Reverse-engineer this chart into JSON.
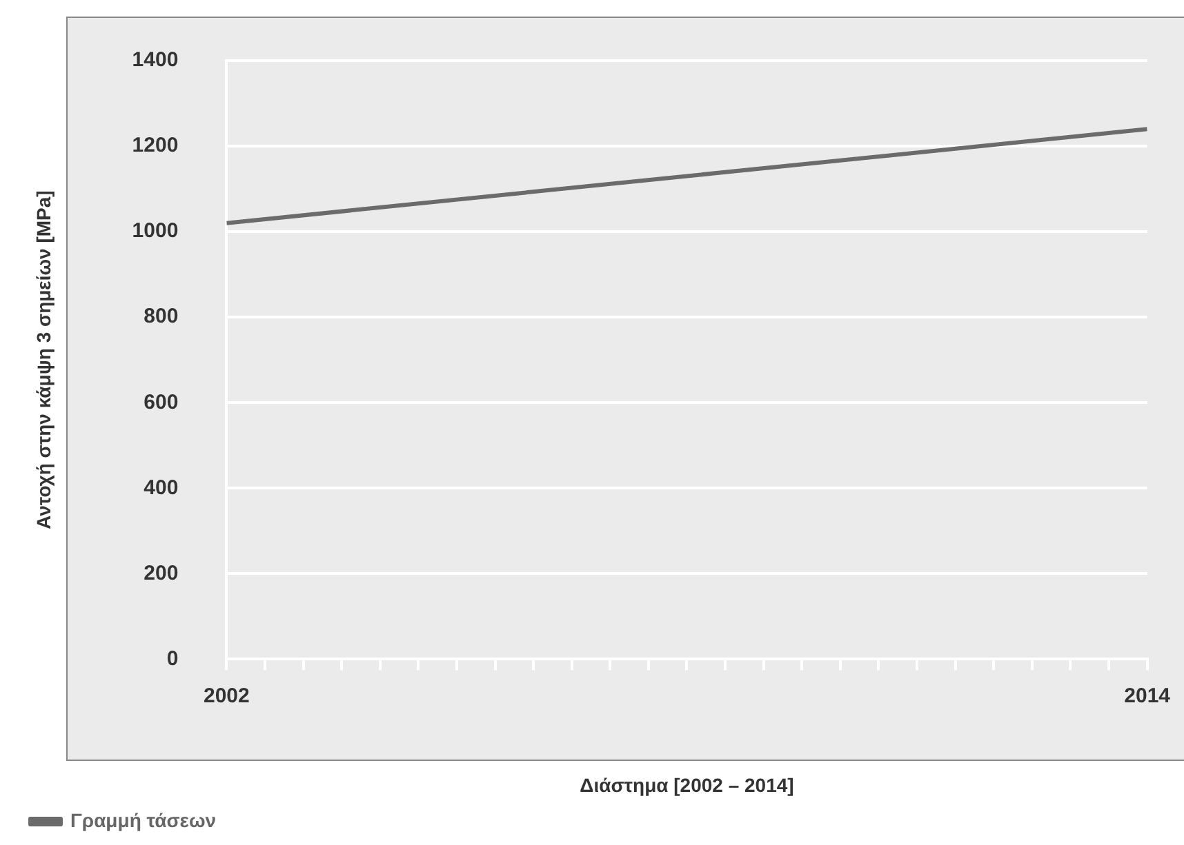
{
  "chart_data": {
    "type": "line",
    "xlabel": "Διάστημα [2002 – 2014]",
    "ylabel": "Αντοχή στην κάμψη 3 σημείων [MPa]",
    "x": [
      2002,
      2014
    ],
    "series": [
      {
        "name": "Γραμμή τάσεων",
        "color": "#6b6b6b",
        "values": [
          1020,
          1240
        ]
      }
    ],
    "xlim": [
      2002,
      2014
    ],
    "xticks": [
      2002,
      {
        "value": 2002.5,
        "label": null
      },
      {
        "value": 2003,
        "label": null
      },
      {
        "value": 2003.5,
        "label": null
      },
      {
        "value": 2004,
        "label": null
      },
      {
        "value": 2004.5,
        "label": null
      },
      {
        "value": 2005,
        "label": null
      },
      {
        "value": 2005.5,
        "label": null
      },
      {
        "value": 2006,
        "label": null
      },
      {
        "value": 2006.5,
        "label": null
      },
      {
        "value": 2007,
        "label": null
      },
      {
        "value": 2007.5,
        "label": null
      },
      {
        "value": 2008,
        "label": null
      },
      {
        "value": 2008.5,
        "label": null
      },
      {
        "value": 2009,
        "label": null
      },
      {
        "value": 2009.5,
        "label": null
      },
      {
        "value": 2010,
        "label": null
      },
      {
        "value": 2010.5,
        "label": null
      },
      {
        "value": 2011,
        "label": null
      },
      {
        "value": 2011.5,
        "label": null
      },
      {
        "value": 2012,
        "label": null
      },
      {
        "value": 2012.5,
        "label": null
      },
      {
        "value": 2013,
        "label": null
      },
      {
        "value": 2013.5,
        "label": null
      },
      2014
    ],
    "ylim": [
      0,
      1400
    ],
    "yticks": [
      0,
      200,
      400,
      600,
      800,
      1000,
      1200,
      1400
    ],
    "grid": "y",
    "legend": "bottom left",
    "marker": "none",
    "line_style": "solid"
  }
}
